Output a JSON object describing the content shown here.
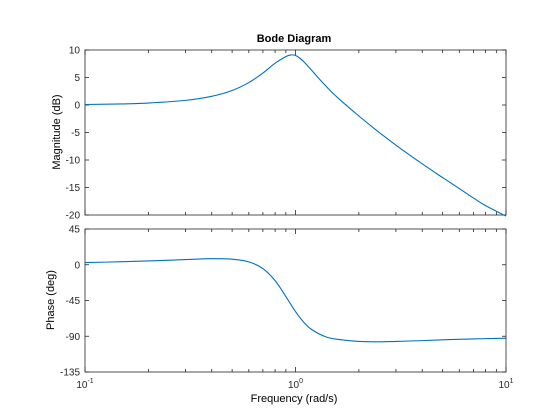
{
  "chart_data": [
    {
      "type": "line",
      "title": "Bode Diagram",
      "ylabel": "Magnitude (dB)",
      "xlabel": "",
      "x_scale": "log",
      "xlim": [
        0.1,
        10
      ],
      "ylim": [
        -20,
        10
      ],
      "yticks": [
        "10",
        "5",
        "0",
        "-5",
        "-10",
        "-15",
        "-20"
      ],
      "grid": false,
      "color": "#0072bd",
      "x": [
        0.1,
        0.15,
        0.2,
        0.3,
        0.4,
        0.5,
        0.6,
        0.7,
        0.8,
        0.9,
        0.95,
        1.0,
        1.05,
        1.1,
        1.2,
        1.3,
        1.5,
        1.7,
        2.0,
        2.5,
        3,
        4,
        5,
        6,
        7,
        8,
        10
      ],
      "y": [
        0.09,
        0.2,
        0.36,
        0.84,
        1.58,
        2.64,
        4.08,
        5.8,
        7.6,
        8.8,
        9.1,
        9.0,
        8.5,
        7.8,
        6.2,
        4.7,
        2.2,
        0.3,
        -2.0,
        -5.0,
        -7.3,
        -10.7,
        -13.2,
        -15.2,
        -16.9,
        -18.3,
        -20.2
      ]
    },
    {
      "type": "line",
      "title": "",
      "ylabel": "Phase (deg)",
      "xlabel": "Frequency  (rad/s)",
      "x_scale": "log",
      "xlim": [
        0.1,
        10
      ],
      "ylim": [
        -135,
        45
      ],
      "yticks": [
        "45",
        "0",
        "-45",
        "-90",
        "-135"
      ],
      "xticks": [
        {
          "base": "10",
          "exp": "-1"
        },
        {
          "base": "10",
          "exp": "0"
        },
        {
          "base": "10",
          "exp": "1"
        }
      ],
      "grid": false,
      "color": "#0072bd",
      "x": [
        0.1,
        0.15,
        0.2,
        0.3,
        0.4,
        0.5,
        0.6,
        0.7,
        0.8,
        0.9,
        1.0,
        1.1,
        1.2,
        1.4,
        1.6,
        2.0,
        2.5,
        3,
        4,
        5,
        6,
        8,
        10
      ],
      "y": [
        2.7,
        3.8,
        4.8,
        6.5,
        7.6,
        7.0,
        3.6,
        -4.8,
        -20.0,
        -40.0,
        -59.0,
        -73.0,
        -82.0,
        -91.0,
        -94.0,
        -96.5,
        -97.0,
        -96.5,
        -95.5,
        -94.5,
        -93.8,
        -93.0,
        -92.4
      ]
    }
  ]
}
